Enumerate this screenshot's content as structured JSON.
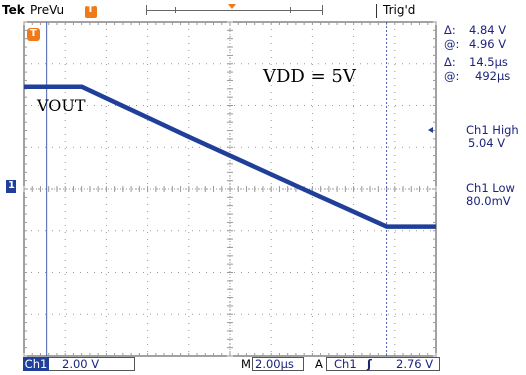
{
  "top_bar": {
    "brand": "Tek",
    "mode": "PreVu",
    "trigger_status": "Trig'd"
  },
  "markers": {
    "trigger_position_glyph": "T",
    "channel1_glyph": "1"
  },
  "annotations": {
    "supply_label": "VDD = 5V",
    "signal_label": "VOUT"
  },
  "readouts": {
    "voltage_delta_symbol": "Δ:",
    "voltage_delta_value": "4.84 V",
    "voltage_at_symbol": "@:",
    "voltage_at_value": "4.96 V",
    "time_delta_symbol": "Δ:",
    "time_delta_value": "14.5µs",
    "time_at_symbol": "@:",
    "time_at_value": "492µs",
    "ch1_high_label": "Ch1 High",
    "ch1_high_value": "5.04 V",
    "ch1_low_label": "Ch1 Low",
    "ch1_low_value": "80.0mV"
  },
  "bottom_bar": {
    "channel": "Ch1",
    "volts_per_div": "2.00 V",
    "horizontal_prefix": "M",
    "time_per_div": "2.00µs",
    "trigger_mode": "A",
    "trigger_source": "Ch1",
    "trigger_slope_glyph": "ʃ",
    "trigger_level": "2.76 V"
  },
  "colors": {
    "trace": "#1f3f9a",
    "text_blue": "#1a237e",
    "orange_marker": "#f07a1a",
    "channel_marker": "#1f3f9a",
    "cursor": "#4a5fb0",
    "grid": "#9a9a9a"
  },
  "chart_data": {
    "type": "line",
    "x_divisions": 10,
    "y_divisions": 8,
    "time_per_div": "2.00µs",
    "volts_per_div": "2.00 V",
    "series": [
      {
        "x_div": [
          0,
          1.4,
          4,
          7,
          8.8,
          10
        ],
        "y_div": [
          2.45,
          2.45,
          1.25,
          -0.1,
          -0.9,
          -0.9
        ]
      }
    ],
    "cursors_x_div": [
      0.55,
      8.8
    ]
  }
}
